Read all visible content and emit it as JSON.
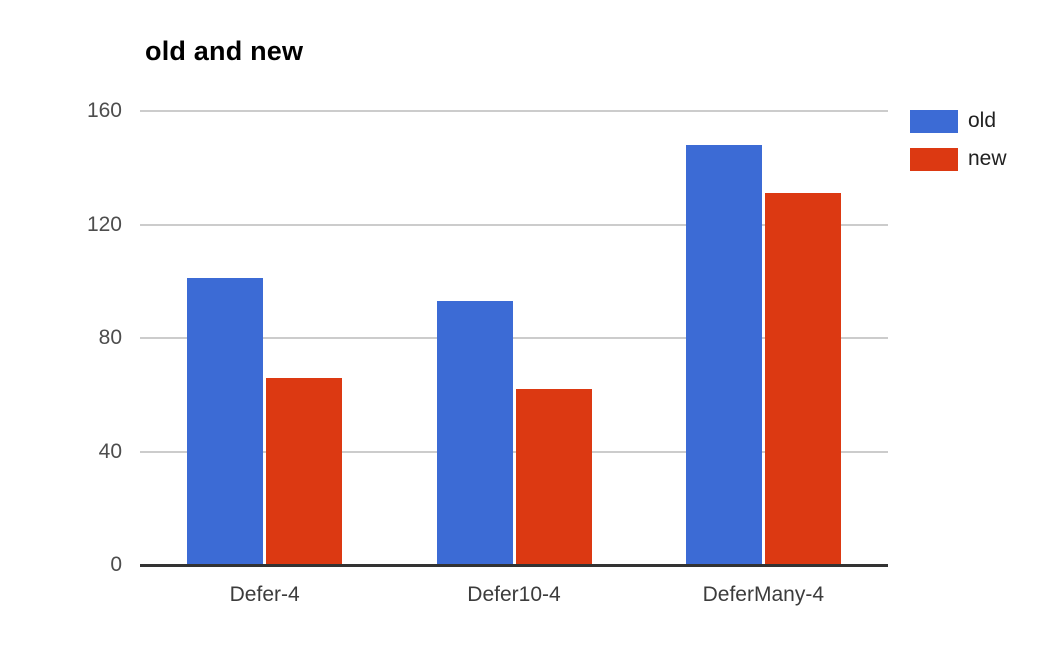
{
  "page": {
    "background": "#FFFFFF"
  },
  "chart_data": {
    "type": "bar",
    "title": "old and new",
    "categories": [
      "Defer-4",
      "Defer10-4",
      "DeferMany-4"
    ],
    "series": [
      {
        "name": "old",
        "color": "#3C6BD5",
        "values": [
          101,
          93,
          148
        ]
      },
      {
        "name": "new",
        "color": "#DC3912",
        "values": [
          66,
          62,
          131
        ]
      }
    ],
    "xlabel": "",
    "ylabel": "",
    "ylim": [
      0,
      160
    ],
    "yticks": [
      0,
      40,
      80,
      120,
      160
    ],
    "grid": true,
    "legend_position": "right",
    "styles": {
      "grid_color": "#CCCCCC",
      "axis_color": "#333333",
      "tick_label_color": "#4D4D4D",
      "category_label_color": "#3C3C3C",
      "legend_label_color": "#212121",
      "title_color": "#000000"
    }
  }
}
